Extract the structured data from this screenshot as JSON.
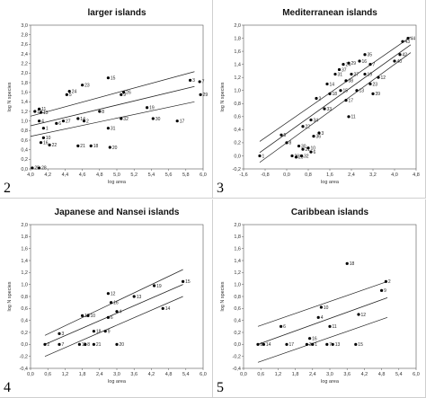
{
  "chart_data": [
    {
      "type": "scatter",
      "panel_number": "2",
      "title": "larger islands",
      "xlabel": "log area",
      "ylabel": "log N species",
      "xlim": [
        4.0,
        6.0
      ],
      "ylim": [
        0.0,
        3.0
      ],
      "xticks": [
        "4,0",
        "4,2",
        "4,4",
        "4,6",
        "4,8",
        "5,0",
        "5,2",
        "5,4",
        "5,6",
        "5,8",
        "6,0"
      ],
      "yticks": [
        "0,0",
        "0,2",
        "0,4",
        "0,6",
        "0,8",
        "1,0",
        "1,2",
        "1,4",
        "1,6",
        "1,8",
        "2,0",
        "2,2",
        "2,4",
        "2,6",
        "2,8",
        "3,0"
      ],
      "grid": false,
      "points": [
        {
          "x": 4.02,
          "y": 0.02,
          "label": "25"
        },
        {
          "x": 4.1,
          "y": 0.02,
          "label": "28"
        },
        {
          "x": 4.05,
          "y": 1.2,
          "label": "12"
        },
        {
          "x": 4.1,
          "y": 1.25,
          "label": "11"
        },
        {
          "x": 4.12,
          "y": 1.18,
          "label": "13"
        },
        {
          "x": 4.1,
          "y": 1.0,
          "label": "4"
        },
        {
          "x": 4.15,
          "y": 0.85,
          "label": "1"
        },
        {
          "x": 4.15,
          "y": 0.65,
          "label": "10"
        },
        {
          "x": 4.12,
          "y": 0.55,
          "label": "16"
        },
        {
          "x": 4.22,
          "y": 0.5,
          "label": "22"
        },
        {
          "x": 4.3,
          "y": 0.95,
          "label": "6"
        },
        {
          "x": 4.38,
          "y": 1.0,
          "label": "27"
        },
        {
          "x": 4.42,
          "y": 1.55,
          "label": "5"
        },
        {
          "x": 4.45,
          "y": 1.62,
          "label": "24"
        },
        {
          "x": 4.6,
          "y": 1.75,
          "label": "23"
        },
        {
          "x": 4.55,
          "y": 1.05,
          "label": "14"
        },
        {
          "x": 4.62,
          "y": 1.0,
          "label": "2"
        },
        {
          "x": 4.55,
          "y": 0.48,
          "label": "21"
        },
        {
          "x": 4.7,
          "y": 0.48,
          "label": "18"
        },
        {
          "x": 4.8,
          "y": 1.2,
          "label": "8"
        },
        {
          "x": 4.9,
          "y": 1.9,
          "label": "15"
        },
        {
          "x": 4.9,
          "y": 0.85,
          "label": "31"
        },
        {
          "x": 4.92,
          "y": 0.45,
          "label": "20"
        },
        {
          "x": 5.05,
          "y": 1.55,
          "label": "9"
        },
        {
          "x": 5.08,
          "y": 1.6,
          "label": "26"
        },
        {
          "x": 5.05,
          "y": 1.05,
          "label": "32"
        },
        {
          "x": 5.35,
          "y": 1.28,
          "label": "19"
        },
        {
          "x": 5.42,
          "y": 1.05,
          "label": "30"
        },
        {
          "x": 5.7,
          "y": 1.0,
          "label": "17"
        },
        {
          "x": 5.85,
          "y": 1.85,
          "label": "3"
        },
        {
          "x": 5.96,
          "y": 1.82,
          "label": "7"
        },
        {
          "x": 5.97,
          "y": 1.55,
          "label": "29"
        }
      ],
      "regression": {
        "x0": 4.0,
        "x1": 5.9,
        "y0": 0.9,
        "y1": 1.72
      },
      "confidence_upper": {
        "x0": 4.0,
        "x1": 5.9,
        "y0": 1.1,
        "y1": 2.03
      },
      "confidence_lower": {
        "x0": 4.0,
        "x1": 5.9,
        "y0": 0.68,
        "y1": 1.4
      }
    },
    {
      "type": "scatter",
      "panel_number": "3",
      "title": "Mediterranean islands",
      "xlabel": "log area",
      "ylabel": "log N species",
      "xlim": [
        -1.6,
        4.8
      ],
      "ylim": [
        -0.2,
        2.0
      ],
      "xticks": [
        "-1,6",
        "-0,8",
        "0,0",
        "0,8",
        "1,6",
        "2,4",
        "3,2",
        "4,0",
        "4,8"
      ],
      "yticks": [
        "-0,2",
        "0,0",
        "0,2",
        "0,4",
        "0,6",
        "0,8",
        "1,0",
        "1,2",
        "1,4",
        "1,6",
        "1,8",
        "2,0"
      ],
      "grid": false,
      "points": [
        {
          "x": -1.0,
          "y": 0.0,
          "label": "1"
        },
        {
          "x": -0.2,
          "y": 0.32,
          "label": "5"
        },
        {
          "x": 0.0,
          "y": 0.2,
          "label": "8"
        },
        {
          "x": 0.2,
          "y": 0.0,
          "label": "26"
        },
        {
          "x": 0.35,
          "y": -0.02,
          "label": "20"
        },
        {
          "x": 0.55,
          "y": 0.0,
          "label": "32"
        },
        {
          "x": 0.45,
          "y": 0.15,
          "label": "30"
        },
        {
          "x": 0.6,
          "y": 0.1,
          "label": "21"
        },
        {
          "x": 0.8,
          "y": 0.12,
          "label": "10"
        },
        {
          "x": 0.9,
          "y": 0.06,
          "label": "6"
        },
        {
          "x": 1.0,
          "y": 0.3,
          "label": "36"
        },
        {
          "x": 0.6,
          "y": 0.45,
          "label": "22"
        },
        {
          "x": 0.9,
          "y": 0.55,
          "label": "34"
        },
        {
          "x": 1.2,
          "y": 0.35,
          "label": "3"
        },
        {
          "x": 1.4,
          "y": 0.72,
          "label": "33"
        },
        {
          "x": 1.1,
          "y": 0.88,
          "label": "2"
        },
        {
          "x": 1.6,
          "y": 0.95,
          "label": "18"
        },
        {
          "x": 1.5,
          "y": 1.1,
          "label": "14"
        },
        {
          "x": 1.8,
          "y": 1.25,
          "label": "31"
        },
        {
          "x": 1.95,
          "y": 1.32,
          "label": "37"
        },
        {
          "x": 2.1,
          "y": 1.4,
          "label": "24"
        },
        {
          "x": 2.3,
          "y": 1.42,
          "label": "29"
        },
        {
          "x": 2.4,
          "y": 1.25,
          "label": "27"
        },
        {
          "x": 2.2,
          "y": 1.15,
          "label": "38"
        },
        {
          "x": 2.0,
          "y": 1.0,
          "label": "15"
        },
        {
          "x": 2.6,
          "y": 1.0,
          "label": "13"
        },
        {
          "x": 2.9,
          "y": 1.25,
          "label": "19"
        },
        {
          "x": 2.7,
          "y": 1.45,
          "label": "16"
        },
        {
          "x": 2.9,
          "y": 1.55,
          "label": "35"
        },
        {
          "x": 3.1,
          "y": 1.4,
          "label": "7"
        },
        {
          "x": 3.1,
          "y": 1.1,
          "label": "23"
        },
        {
          "x": 3.4,
          "y": 1.2,
          "label": "12"
        },
        {
          "x": 2.2,
          "y": 0.85,
          "label": "17"
        },
        {
          "x": 2.3,
          "y": 0.6,
          "label": "11"
        },
        {
          "x": 3.2,
          "y": 0.95,
          "label": "39"
        },
        {
          "x": 4.0,
          "y": 1.45,
          "label": "40"
        },
        {
          "x": 4.2,
          "y": 1.55,
          "label": "42"
        },
        {
          "x": 4.3,
          "y": 1.75,
          "label": "43"
        },
        {
          "x": 4.5,
          "y": 1.8,
          "label": "44"
        }
      ],
      "regression": {
        "x0": -1.0,
        "x1": 4.6,
        "y0": 0.05,
        "y1": 1.7
      },
      "confidence_upper": {
        "x0": -1.0,
        "x1": 4.6,
        "y0": 0.22,
        "y1": 1.82
      },
      "confidence_lower": {
        "x0": -1.0,
        "x1": 4.6,
        "y0": -0.1,
        "y1": 1.58
      }
    },
    {
      "type": "scatter",
      "panel_number": "4",
      "title": "Japanese and Nansei islands",
      "xlabel": "log area",
      "ylabel": "log N species",
      "xlim": [
        0.0,
        6.0
      ],
      "ylim": [
        -0.4,
        2.0
      ],
      "xticks": [
        "0,0",
        "0,6",
        "1,2",
        "1,8",
        "2,4",
        "3,0",
        "3,6",
        "4,2",
        "4,8",
        "5,4",
        "6,0"
      ],
      "yticks": [
        "-0,4",
        "-0,2",
        "0,0",
        "0,2",
        "0,4",
        "0,6",
        "0,8",
        "1,0",
        "1,2",
        "1,4",
        "1,6",
        "1,8",
        "2,0"
      ],
      "grid": false,
      "points": [
        {
          "x": 0.5,
          "y": 0.0,
          "label": "2"
        },
        {
          "x": 1.0,
          "y": 0.18,
          "label": "3"
        },
        {
          "x": 1.0,
          "y": 0.0,
          "label": "7"
        },
        {
          "x": 1.8,
          "y": 0.48,
          "label": "17"
        },
        {
          "x": 2.0,
          "y": 0.48,
          "label": "10"
        },
        {
          "x": 2.2,
          "y": 0.22,
          "label": "18"
        },
        {
          "x": 1.7,
          "y": 0.0,
          "label": "11"
        },
        {
          "x": 1.9,
          "y": 0.0,
          "label": "8"
        },
        {
          "x": 2.2,
          "y": 0.0,
          "label": "21"
        },
        {
          "x": 2.6,
          "y": 0.22,
          "label": "9"
        },
        {
          "x": 2.7,
          "y": 0.45,
          "label": "6"
        },
        {
          "x": 3.0,
          "y": 0.55,
          "label": "4"
        },
        {
          "x": 2.7,
          "y": 0.85,
          "label": "12"
        },
        {
          "x": 2.8,
          "y": 0.7,
          "label": "16"
        },
        {
          "x": 3.0,
          "y": 0.0,
          "label": "20"
        },
        {
          "x": 3.6,
          "y": 0.8,
          "label": "13"
        },
        {
          "x": 4.3,
          "y": 0.98,
          "label": "19"
        },
        {
          "x": 4.6,
          "y": 0.6,
          "label": "14"
        },
        {
          "x": 5.3,
          "y": 1.05,
          "label": "15"
        }
      ],
      "regression": {
        "x0": 0.5,
        "x1": 5.3,
        "y0": 0.0,
        "y1": 1.0
      },
      "confidence_upper": {
        "x0": 0.5,
        "x1": 5.3,
        "y0": 0.15,
        "y1": 1.25
      },
      "confidence_lower": {
        "x0": 0.5,
        "x1": 5.3,
        "y0": -0.2,
        "y1": 0.8
      }
    },
    {
      "type": "scatter",
      "panel_number": "5",
      "title": "Caribbean islands",
      "xlabel": "log area",
      "ylabel": "log N species",
      "xlim": [
        0.0,
        6.0
      ],
      "ylim": [
        -0.4,
        2.0
      ],
      "xticks": [
        "0,0",
        "0,6",
        "1,2",
        "1,8",
        "2,4",
        "3,0",
        "3,6",
        "4,2",
        "4,8",
        "5,4",
        "6,0"
      ],
      "yticks": [
        "-0,4",
        "-0,2",
        "0,0",
        "0,2",
        "0,4",
        "0,6",
        "0,8",
        "1,0",
        "1,2",
        "1,4",
        "1,6",
        "1,8",
        "2,0"
      ],
      "grid": false,
      "points": [
        {
          "x": 0.5,
          "y": 0.0,
          "label": "8"
        },
        {
          "x": 0.7,
          "y": 0.0,
          "label": "14"
        },
        {
          "x": 1.3,
          "y": 0.3,
          "label": "6"
        },
        {
          "x": 1.5,
          "y": 0.0,
          "label": "17"
        },
        {
          "x": 2.2,
          "y": 0.0,
          "label": "3"
        },
        {
          "x": 2.4,
          "y": 0.0,
          "label": "1"
        },
        {
          "x": 2.3,
          "y": 0.1,
          "label": "16"
        },
        {
          "x": 2.6,
          "y": 0.45,
          "label": "4"
        },
        {
          "x": 2.7,
          "y": 0.62,
          "label": "10"
        },
        {
          "x": 2.9,
          "y": 0.0,
          "label": "7"
        },
        {
          "x": 3.0,
          "y": 0.3,
          "label": "11"
        },
        {
          "x": 3.1,
          "y": 0.0,
          "label": "13"
        },
        {
          "x": 3.6,
          "y": 1.35,
          "label": "18"
        },
        {
          "x": 3.9,
          "y": 0.0,
          "label": "15"
        },
        {
          "x": 4.0,
          "y": 0.5,
          "label": "12"
        },
        {
          "x": 4.8,
          "y": 0.9,
          "label": "9"
        },
        {
          "x": 4.95,
          "y": 1.05,
          "label": "2"
        }
      ],
      "regression": {
        "x0": 0.5,
        "x1": 5.0,
        "y0": 0.0,
        "y1": 0.78
      },
      "confidence_upper": {
        "x0": 0.5,
        "x1": 5.0,
        "y0": 0.3,
        "y1": 1.05
      },
      "confidence_lower": {
        "x0": 0.5,
        "x1": 5.0,
        "y0": -0.3,
        "y1": 0.45
      }
    }
  ]
}
